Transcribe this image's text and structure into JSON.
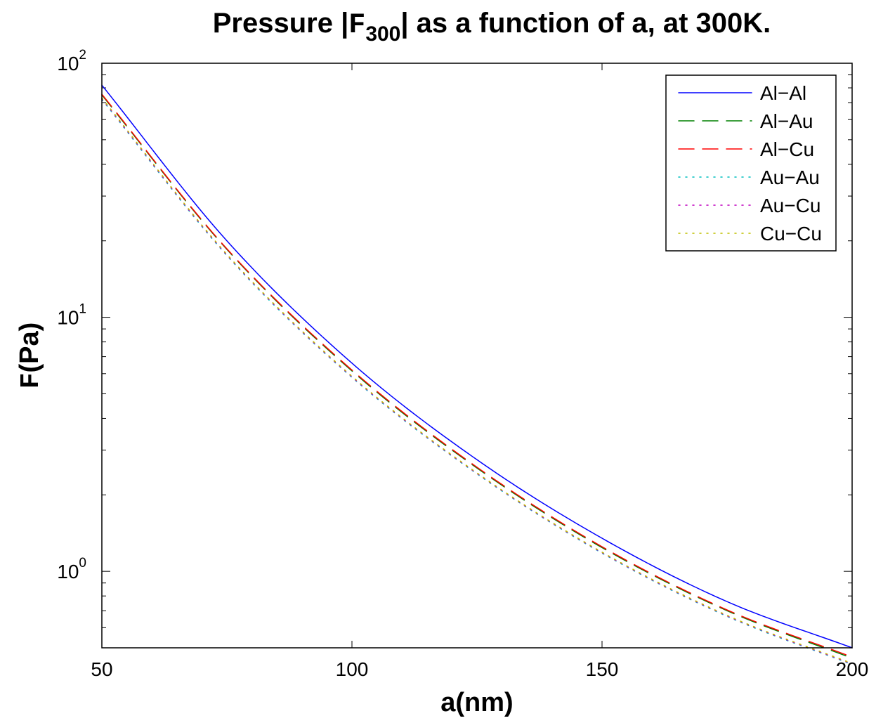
{
  "chart_data": {
    "type": "line",
    "title": {
      "prefix": "Pressure |",
      "symbol": "F",
      "subscript": "300",
      "suffix": "| as a function of a, at 300K."
    },
    "xlabel": "a(nm)",
    "ylabel": {
      "symbol": "F",
      "rest": "(Pa)"
    },
    "xlim": [
      50,
      200
    ],
    "ylim": [
      0.5,
      100
    ],
    "yscale": "log",
    "xticks": [
      50,
      100,
      150,
      200
    ],
    "xtick_labels": [
      "50",
      "100",
      "150",
      "200"
    ],
    "yticks": [
      1,
      10,
      100
    ],
    "ytick_labels": [
      {
        "base": "10",
        "exp": "0"
      },
      {
        "base": "10",
        "exp": "1"
      },
      {
        "base": "10",
        "exp": "2"
      }
    ],
    "grid": false,
    "legend_position": "top-right",
    "x": [
      50,
      75,
      100,
      125,
      150,
      175,
      200
    ],
    "series": [
      {
        "name": "Al−Al",
        "color": "#0000ff",
        "style": "solid",
        "values": [
          82,
          20.0,
          6.6,
          2.75,
          1.35,
          0.76,
          0.5
        ]
      },
      {
        "name": "Al−Au",
        "color": "#008000",
        "style": "dashed",
        "values": [
          75,
          18.5,
          6.15,
          2.55,
          1.24,
          0.7,
          0.455
        ]
      },
      {
        "name": "Al−Cu",
        "color": "#ff0000",
        "style": "dashed",
        "values": [
          75.5,
          18.6,
          6.2,
          2.57,
          1.25,
          0.705,
          0.46
        ]
      },
      {
        "name": "Au−Au",
        "color": "#00bfbf",
        "style": "dotted",
        "values": [
          72,
          17.5,
          5.8,
          2.42,
          1.18,
          0.665,
          0.43
        ]
      },
      {
        "name": "Au−Cu",
        "color": "#bf00bf",
        "style": "dotted",
        "values": [
          72.5,
          17.6,
          5.83,
          2.43,
          1.185,
          0.668,
          0.432
        ]
      },
      {
        "name": "Cu−Cu",
        "color": "#bfbf00",
        "style": "dotted",
        "values": [
          73,
          17.7,
          5.86,
          2.44,
          1.19,
          0.671,
          0.434
        ]
      }
    ]
  }
}
